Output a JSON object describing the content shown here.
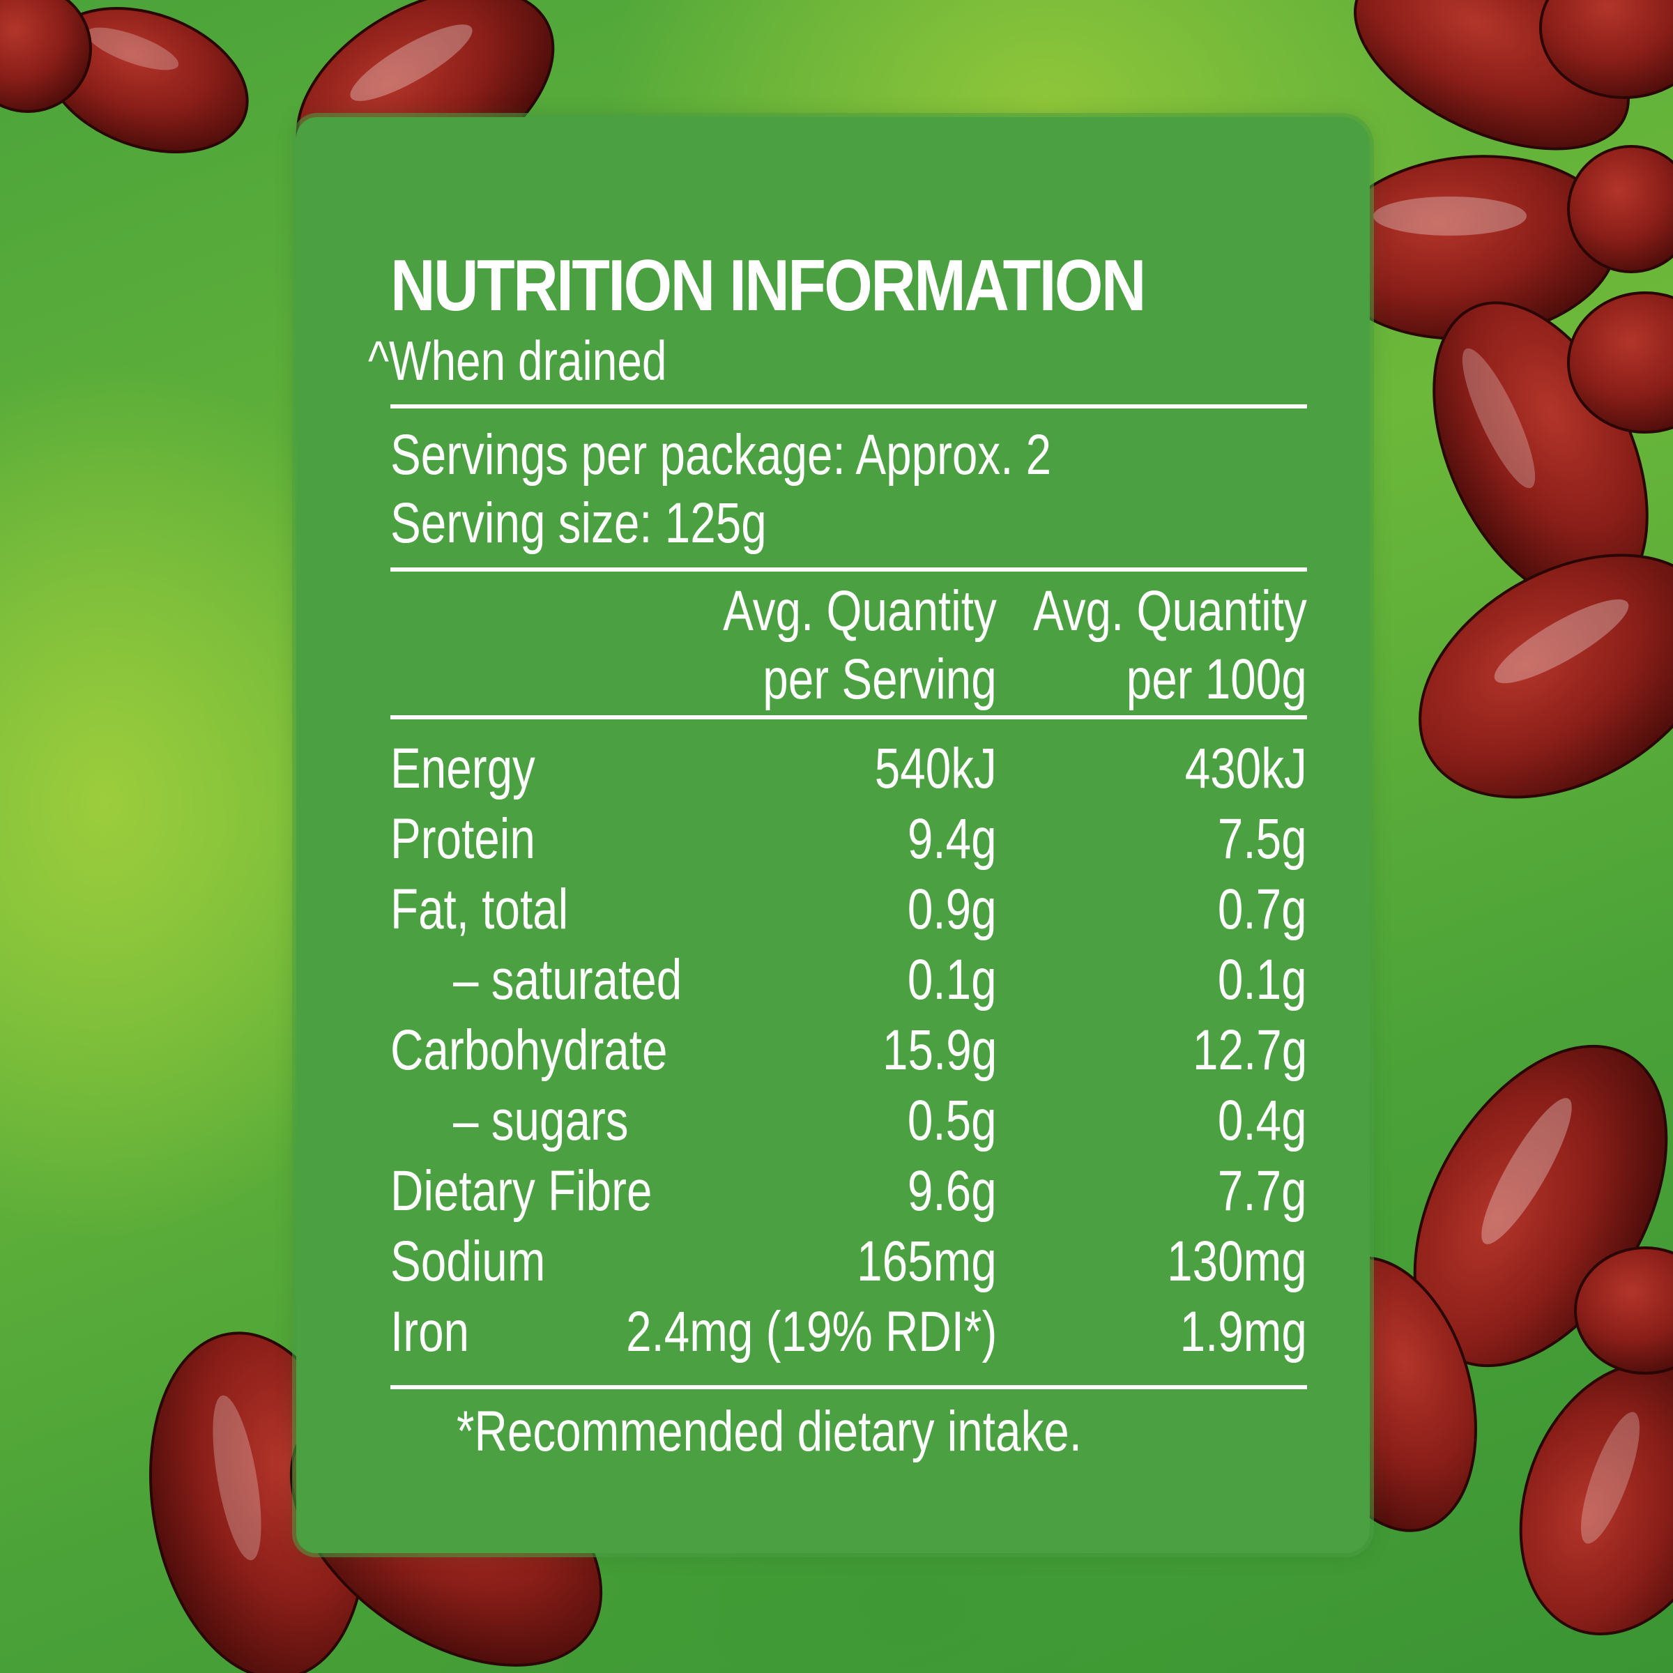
{
  "label": {
    "title": "NUTRITION INFORMATION",
    "subtitle": "^When drained",
    "servings_per_package": "Servings per package: Approx. 2",
    "serving_size": "Serving size: 125g",
    "col_serving_line1": "Avg. Quantity",
    "col_serving_line2": "per Serving",
    "col_100g_line1": "Avg. Quantity",
    "col_100g_line2": "per 100g",
    "rows": [
      {
        "name": "Energy",
        "per_serving": "540kJ",
        "per_100g": "430kJ"
      },
      {
        "name": "Protein",
        "per_serving": "9.4g",
        "per_100g": "7.5g"
      },
      {
        "name": "Fat, total",
        "per_serving": "0.9g",
        "per_100g": "0.7g"
      },
      {
        "name": "– saturated",
        "per_serving": "0.1g",
        "per_100g": "0.1g"
      },
      {
        "name": "Carbohydrate",
        "per_serving": "15.9g",
        "per_100g": "12.7g"
      },
      {
        "name": "– sugars",
        "per_serving": "0.5g",
        "per_100g": "0.4g"
      },
      {
        "name": "Dietary Fibre",
        "per_serving": "9.6g",
        "per_100g": "7.7g"
      },
      {
        "name": "Sodium",
        "per_serving": "165mg",
        "per_100g": "130mg"
      },
      {
        "name": "Iron",
        "per_serving": "2.4mg (19% RDI*)",
        "per_100g": "1.9mg"
      }
    ],
    "footnote": "*Recommended dietary intake."
  },
  "colors": {
    "panel_green": "#4ba141",
    "background_green": "#6cb83a",
    "bean_red": "#8a1e18",
    "text": "#ffffff"
  }
}
